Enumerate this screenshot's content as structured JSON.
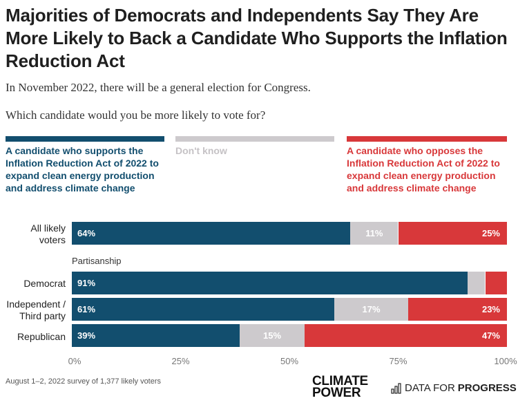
{
  "header": {
    "title": "Majorities of Democrats and Independents Say They Are More Likely to Back a Candidate Who Supports the Inflation Reduction Act",
    "subtitle": "In November 2022, there will be a general election for Congress.",
    "question": "Which candidate would you be more likely to vote for?"
  },
  "legend": [
    {
      "label": "A candidate who supports the Inflation Reduction Act of 2022 to expand clean energy production and address climate change",
      "color": "#124e6e"
    },
    {
      "label": "Don't know",
      "color": "#cdcacd"
    },
    {
      "label": "A candidate who opposes the Inflation Reduction Act of 2022 to expand clean energy production and address climate change",
      "color": "#d8383a"
    }
  ],
  "section_label": "Partisanship",
  "footer": {
    "note": "August 1–2, 2022 survey of 1,377 likely voters",
    "logo_left": "CLIMATE POWER",
    "logo_right_regular": "DATA FOR",
    "logo_right_bold": "PROGRESS"
  },
  "chart_data": {
    "type": "bar",
    "orientation": "horizontal-stacked",
    "categories": [
      "All likely voters",
      "Democrat",
      "Independent / Third party",
      "Republican"
    ],
    "series": [
      {
        "name": "A candidate who supports the Inflation Reduction Act of 2022 to expand clean energy production and address climate change",
        "values": [
          64,
          91,
          61,
          39
        ],
        "labels": [
          "64%",
          "91%",
          "61%",
          "39%"
        ],
        "color": "#124e6e"
      },
      {
        "name": "Don't know",
        "values": [
          11,
          4,
          17,
          15
        ],
        "labels": [
          "11%",
          "",
          "17%",
          "15%"
        ],
        "color": "#cdcacd"
      },
      {
        "name": "A candidate who opposes the Inflation Reduction Act of 2022 to expand clean energy production and address climate change",
        "values": [
          25,
          5,
          23,
          47
        ],
        "labels": [
          "25%",
          "",
          "23%",
          "47%"
        ],
        "color": "#d8383a"
      }
    ],
    "xlim": [
      0,
      100
    ],
    "xticks": [
      "0%",
      "25%",
      "50%",
      "75%",
      "100%"
    ],
    "legend_position": "top"
  }
}
